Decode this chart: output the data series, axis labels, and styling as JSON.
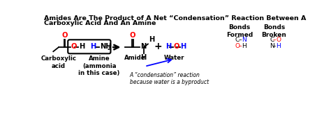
{
  "title_line1": "Amides Are The Product of A Net “Condensation” Reaction Between A",
  "title_line2": "Carboxylic Acid And An Amine",
  "bg_color": "#ffffff",
  "label_carboxylic": "Carboxylic\nacid",
  "label_amine": "Amine\n(ammonia\nin this case)",
  "label_amide": "Amide",
  "label_water": "Water",
  "bonds_formed_title": "Bonds\nFormed",
  "bonds_broken_title": "Bonds\nBroken",
  "condensation_note": "A “condensation” reaction\nbecause water is a byproduct",
  "blue": "#0000ff",
  "red": "#ff0000",
  "black": "#000000",
  "bg": "#f5f5f5"
}
